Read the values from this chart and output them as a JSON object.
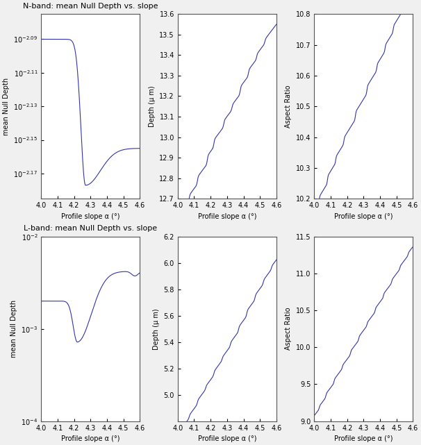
{
  "fig_width": 6.06,
  "fig_height": 6.41,
  "dpi": 100,
  "x_min": 4.0,
  "x_max": 4.6,
  "n_points": 500,
  "top_row": {
    "plot1": {
      "title": "N-band: mean Null Depth vs. slope",
      "xlabel": "Profile slope α (°)",
      "ylabel": "mean Null Depth",
      "ytick_exponents": [
        -2.09,
        -2.11,
        -2.13,
        -2.15,
        -2.17
      ],
      "ylim_exp": [
        -2.185,
        -2.075
      ]
    },
    "plot2": {
      "xlabel": "Profile slope α (°)",
      "ylabel": "Depth (μ m)",
      "ylim": [
        12.7,
        13.6
      ],
      "yticks": [
        12.7,
        12.8,
        12.9,
        13.0,
        13.1,
        13.2,
        13.3,
        13.4,
        13.5,
        13.6
      ]
    },
    "plot3": {
      "xlabel": "Profile slope α (°)",
      "ylabel": "Aspect Ratio",
      "ylim": [
        10.2,
        10.8
      ],
      "yticks": [
        10.2,
        10.3,
        10.4,
        10.5,
        10.6,
        10.7,
        10.8
      ]
    }
  },
  "bottom_row": {
    "plot1": {
      "title": "L-band: mean Null Depth vs. slope",
      "xlabel": "Profile slope α (°)",
      "ylabel": "mean Null Depth",
      "ylim_log": [
        0.0001,
        0.01
      ],
      "yticks_log": [
        0.0001,
        0.001,
        0.01
      ]
    },
    "plot2": {
      "xlabel": "Profile slope α (°)",
      "ylabel": "Depth (μ m)",
      "ylim": [
        4.8,
        6.2
      ],
      "yticks": [
        5.0,
        5.2,
        5.4,
        5.6,
        5.8,
        6.0,
        6.2
      ]
    },
    "plot3": {
      "xlabel": "Profile slope α (°)",
      "ylabel": "Aspect Ratio",
      "ylim": [
        9.0,
        11.5
      ],
      "yticks": [
        9.0,
        9.5,
        10.0,
        10.5,
        11.0,
        11.5
      ]
    }
  },
  "line_color": "#3333aa",
  "line_width": 0.8,
  "tick_label_size": 7,
  "axis_label_size": 7,
  "title_size": 8,
  "bg_color": "#f0f0f0",
  "face_color": "white"
}
